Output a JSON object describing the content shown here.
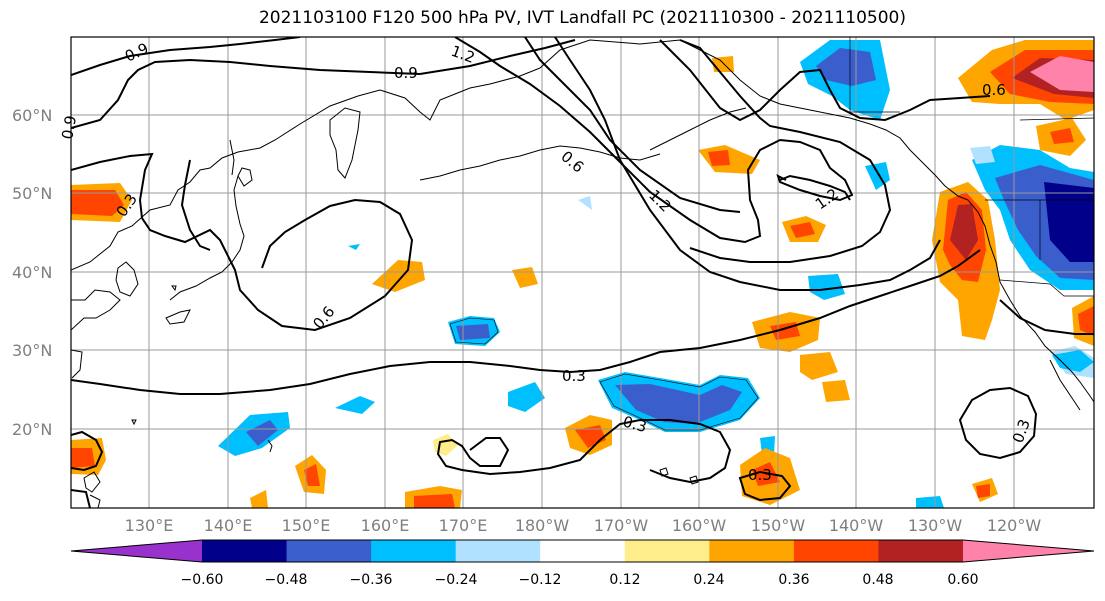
{
  "title": "2021103100 F120 500 hPa PV, IVT Landfall PC (2021110300 - 2021110500)",
  "lat_labels": [
    "60°N",
    "50°N",
    "40°N",
    "30°N",
    "20°N"
  ],
  "lon_labels": [
    "130°E",
    "140°E",
    "150°E",
    "160°E",
    "170°E",
    "180°W",
    "170°W",
    "160°W",
    "150°W",
    "140°W",
    "130°W",
    "120°W"
  ],
  "pv_labels": [
    "0.9",
    "1.2",
    "0.9",
    "0.9",
    "0.6",
    "1.2",
    "1.2",
    "0.6",
    "0.3",
    "0.6",
    "0.3",
    "0.3",
    "0.3",
    "0.3"
  ],
  "colorbar": {
    "tick_labels": [
      "−0.60",
      "−0.48",
      "−0.36",
      "−0.24",
      "−0.12",
      "0.12",
      "0.24",
      "0.36",
      "0.48",
      "0.60"
    ],
    "colors": [
      "#9932cc",
      "#00008b",
      "#3a5fcd",
      "#00bfff",
      "#b0e2ff",
      "#ffffff",
      "#ffec8b",
      "#ffa500",
      "#ff4500",
      "#b22222",
      "#ff82ab"
    ]
  }
}
